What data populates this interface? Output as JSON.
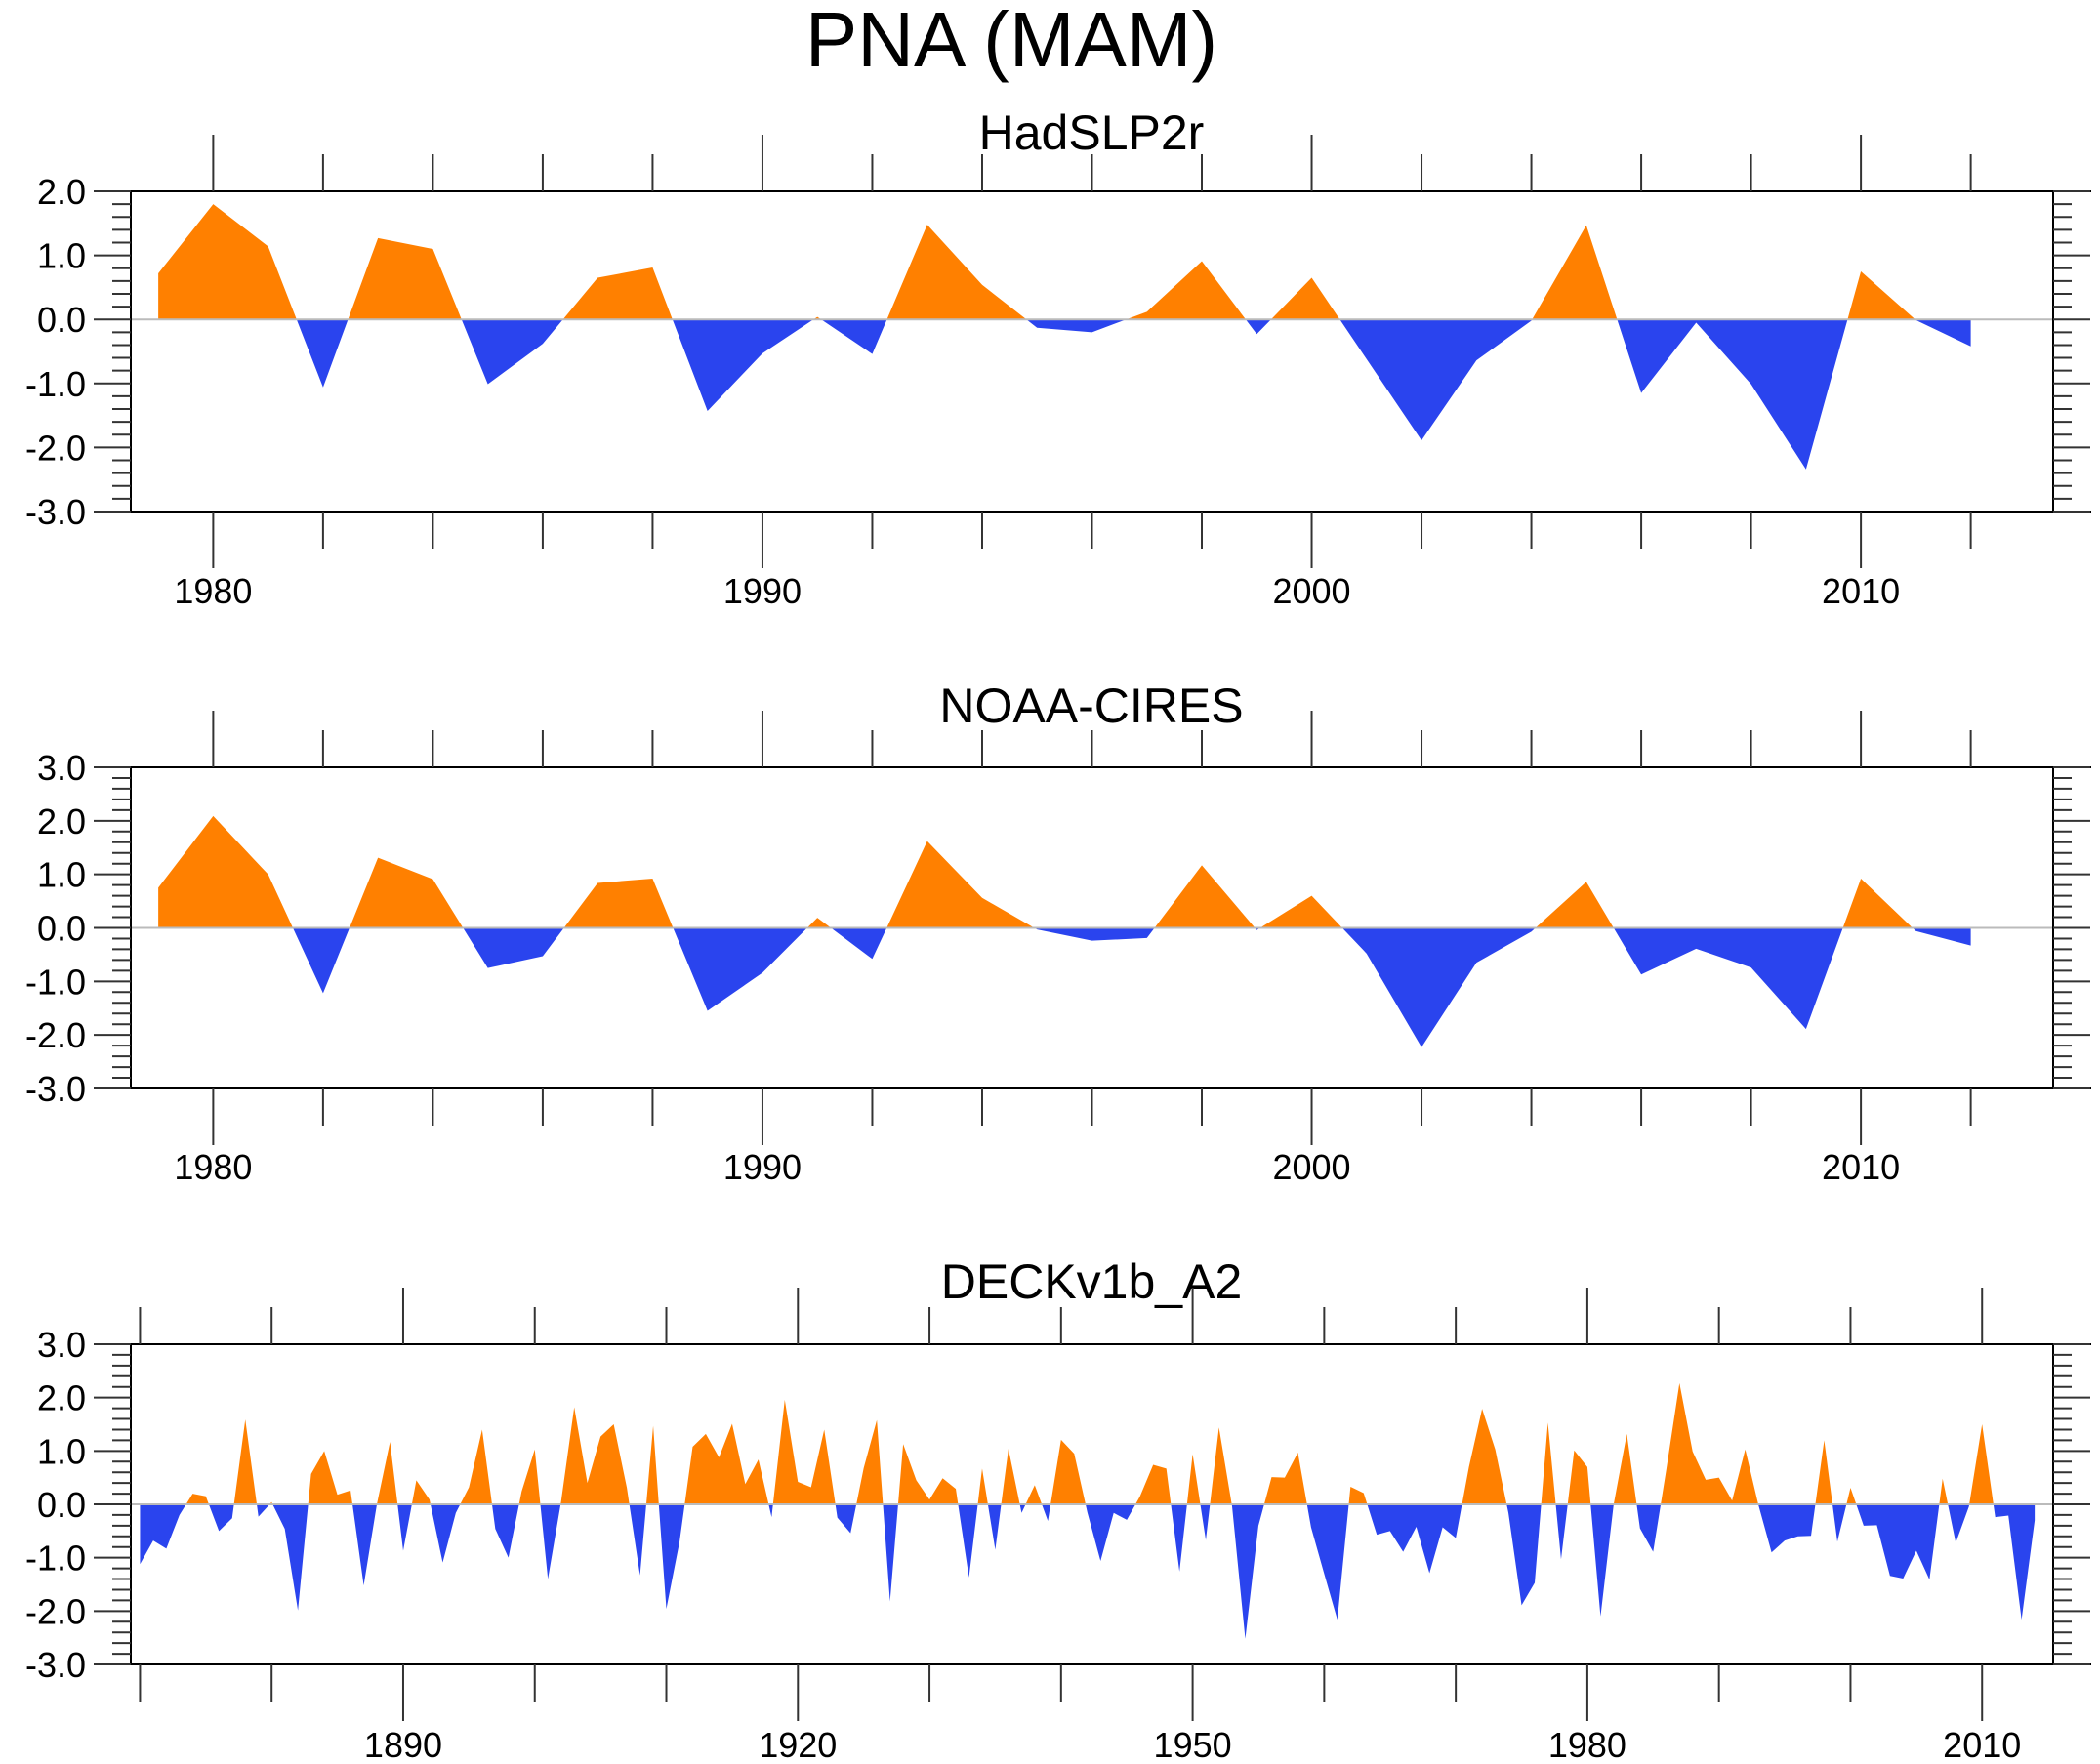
{
  "figure": {
    "title": "PNA (MAM)",
    "colors": {
      "positive": "#FF8000",
      "negative": "#2A44EE",
      "zero_line": "#BBBBBB",
      "axis": "#000000"
    }
  },
  "chart_data": [
    {
      "type": "area",
      "title": "HadSLP2r",
      "xlabel": "",
      "ylabel": "",
      "xlim": [
        1978.5,
        2013.5
      ],
      "ylim": [
        -3.0,
        2.0
      ],
      "grid": false,
      "legend": "none",
      "x_major_ticks": [
        1980,
        1990,
        2000,
        2010
      ],
      "x_tick_labels": [
        "1980",
        "1990",
        "2000",
        "2010"
      ],
      "x_minor_step": 2,
      "y_major_ticks": [
        2.0,
        1.0,
        0.0,
        -1.0,
        -2.0,
        -3.0
      ],
      "y_tick_labels": [
        "2.0",
        "1.0",
        "0.0",
        "-1.0",
        "-2.0",
        "-3.0"
      ],
      "y_minor_step": 0.2,
      "fill_above_zero": "orange",
      "fill_below_zero": "blue",
      "x": [
        1979,
        1980,
        1981,
        1982,
        1983,
        1984,
        1985,
        1986,
        1987,
        1988,
        1989,
        1990,
        1991,
        1992,
        1993,
        1994,
        1995,
        1996,
        1997,
        1998,
        1999,
        2000,
        2001,
        2002,
        2003,
        2004,
        2005,
        2006,
        2007,
        2008,
        2009,
        2010,
        2011,
        2012
      ],
      "values": [
        0.72,
        1.8,
        1.14,
        -1.06,
        1.27,
        1.1,
        -1.01,
        -0.38,
        0.65,
        0.81,
        -1.43,
        -0.53,
        0.04,
        -0.54,
        1.48,
        0.54,
        -0.13,
        -0.2,
        0.12,
        0.91,
        -0.23,
        0.65,
        -0.62,
        -1.89,
        -0.64,
        -0.02,
        1.47,
        -1.15,
        -0.05,
        -1.01,
        -2.34,
        0.75,
        -0.01,
        -0.42
      ]
    },
    {
      "type": "area",
      "title": "NOAA-CIRES",
      "xlabel": "",
      "ylabel": "",
      "xlim": [
        1978.5,
        2013.5
      ],
      "ylim": [
        -3.0,
        3.0
      ],
      "grid": false,
      "legend": "none",
      "x_major_ticks": [
        1980,
        1990,
        2000,
        2010
      ],
      "x_tick_labels": [
        "1980",
        "1990",
        "2000",
        "2010"
      ],
      "x_minor_step": 2,
      "y_major_ticks": [
        3.0,
        2.0,
        1.0,
        0.0,
        -1.0,
        -2.0,
        -3.0
      ],
      "y_tick_labels": [
        "3.0",
        "2.0",
        "1.0",
        "0.0",
        "-1.0",
        "-2.0",
        "-3.0"
      ],
      "y_minor_step": 0.2,
      "fill_above_zero": "orange",
      "fill_below_zero": "blue",
      "x": [
        1979,
        1980,
        1981,
        1982,
        1983,
        1984,
        1985,
        1986,
        1987,
        1988,
        1989,
        1990,
        1991,
        1992,
        1993,
        1994,
        1995,
        1996,
        1997,
        1998,
        1999,
        2000,
        2001,
        2002,
        2003,
        2004,
        2005,
        2006,
        2007,
        2008,
        2009,
        2010,
        2011,
        2012
      ],
      "values": [
        0.75,
        2.09,
        1.0,
        -1.22,
        1.31,
        0.91,
        -0.75,
        -0.53,
        0.84,
        0.92,
        -1.55,
        -0.84,
        0.19,
        -0.58,
        1.62,
        0.56,
        -0.03,
        -0.24,
        -0.19,
        1.17,
        -0.04,
        0.6,
        -0.48,
        -2.23,
        -0.65,
        -0.07,
        0.86,
        -0.87,
        -0.39,
        -0.74,
        -1.89,
        0.92,
        -0.06,
        -0.33
      ]
    },
    {
      "type": "area",
      "title": "DECKv1b_A2",
      "xlabel": "",
      "ylabel": "",
      "xlim": [
        1869.3,
        2015.4
      ],
      "ylim": [
        -3.0,
        3.0
      ],
      "grid": false,
      "legend": "none",
      "x_major_ticks": [
        1890,
        1920,
        1950,
        1980,
        2010
      ],
      "x_tick_labels": [
        "1890",
        "1920",
        "1950",
        "1980",
        "2010"
      ],
      "x_minor_step": 10,
      "y_major_ticks": [
        3.0,
        2.0,
        1.0,
        0.0,
        -1.0,
        -2.0,
        -3.0
      ],
      "y_tick_labels": [
        "3.0",
        "2.0",
        "1.0",
        "0.0",
        "-1.0",
        "-2.0",
        "-3.0"
      ],
      "y_minor_step": 0.2,
      "fill_above_zero": "orange",
      "fill_below_zero": "blue",
      "x_start": 1870,
      "x_end": 2014,
      "values": [
        -1.12,
        -0.68,
        -0.83,
        -0.2,
        0.2,
        0.15,
        -0.5,
        -0.26,
        1.59,
        -0.23,
        0.04,
        -0.46,
        -1.99,
        0.57,
        1.0,
        0.18,
        0.26,
        -1.52,
        0.0,
        1.17,
        -0.87,
        0.45,
        0.09,
        -1.09,
        -0.16,
        0.32,
        1.4,
        -0.46,
        -1.0,
        0.24,
        1.03,
        -1.4,
        0.05,
        1.82,
        0.4,
        1.27,
        1.5,
        0.31,
        -1.33,
        1.47,
        -1.96,
        -0.71,
        1.08,
        1.32,
        0.88,
        1.51,
        0.38,
        0.84,
        -0.24,
        1.96,
        0.42,
        0.32,
        1.4,
        -0.25,
        -0.54,
        0.68,
        1.58,
        -1.82,
        1.13,
        0.45,
        0.09,
        0.49,
        0.29,
        -1.37,
        0.67,
        -0.85,
        1.04,
        -0.16,
        0.36,
        -0.31,
        1.21,
        0.95,
        -0.15,
        -1.06,
        -0.16,
        -0.29,
        0.15,
        0.74,
        0.67,
        -1.26,
        0.94,
        -0.67,
        1.44,
        -0.04,
        -2.52,
        -0.4,
        0.51,
        0.5,
        0.97,
        -0.43,
        -1.3,
        -2.16,
        0.33,
        0.21,
        -0.57,
        -0.5,
        -0.89,
        -0.42,
        -1.29,
        -0.43,
        -0.63,
        0.7,
        1.79,
        1.03,
        -0.16,
        -1.89,
        -1.47,
        1.53,
        -1.03,
        1.01,
        0.7,
        -2.1,
        0.0,
        1.32,
        -0.45,
        -0.89,
        0.65,
        2.27,
        0.99,
        0.46,
        0.5,
        0.07,
        1.03,
        -0.01,
        -0.9,
        -0.68,
        -0.6,
        -0.59,
        1.2,
        -0.7,
        0.31,
        -0.4,
        -0.39,
        -1.34,
        -1.39,
        -0.87,
        -1.41,
        0.48,
        -0.72,
        -0.04,
        1.5,
        -0.24,
        -0.21,
        -2.16,
        -0.3
      ]
    }
  ]
}
